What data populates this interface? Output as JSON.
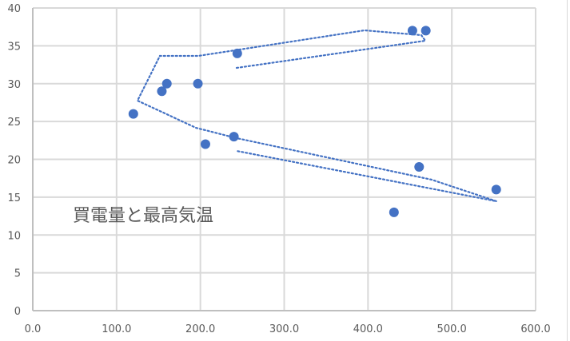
{
  "chart_data": {
    "type": "scatter",
    "title": "買電量と最高気温",
    "xlabel": "",
    "ylabel": "",
    "xlim": [
      0,
      600
    ],
    "ylim": [
      0,
      40
    ],
    "x_ticks": [
      "0.0",
      "100.0",
      "200.0",
      "300.0",
      "400.0",
      "500.0",
      "600.0"
    ],
    "y_ticks": [
      "0",
      "5",
      "10",
      "15",
      "20",
      "25",
      "30",
      "35",
      "40"
    ],
    "grid": true,
    "legend": null,
    "marker_color": "#4472c4",
    "trendline": {
      "type": "moving-average",
      "style": "dotted",
      "color": "#4472c4"
    },
    "series": [
      {
        "name": "買電量と最高気温",
        "points": [
          {
            "x": 120,
            "y": 26
          },
          {
            "x": 154,
            "y": 29
          },
          {
            "x": 160,
            "y": 30
          },
          {
            "x": 197,
            "y": 30
          },
          {
            "x": 206,
            "y": 22
          },
          {
            "x": 240,
            "y": 23
          },
          {
            "x": 244,
            "y": 34
          },
          {
            "x": 453,
            "y": 37
          },
          {
            "x": 469,
            "y": 37
          },
          {
            "x": 461,
            "y": 19
          },
          {
            "x": 431,
            "y": 13
          },
          {
            "x": 553,
            "y": 16
          }
        ]
      }
    ]
  }
}
